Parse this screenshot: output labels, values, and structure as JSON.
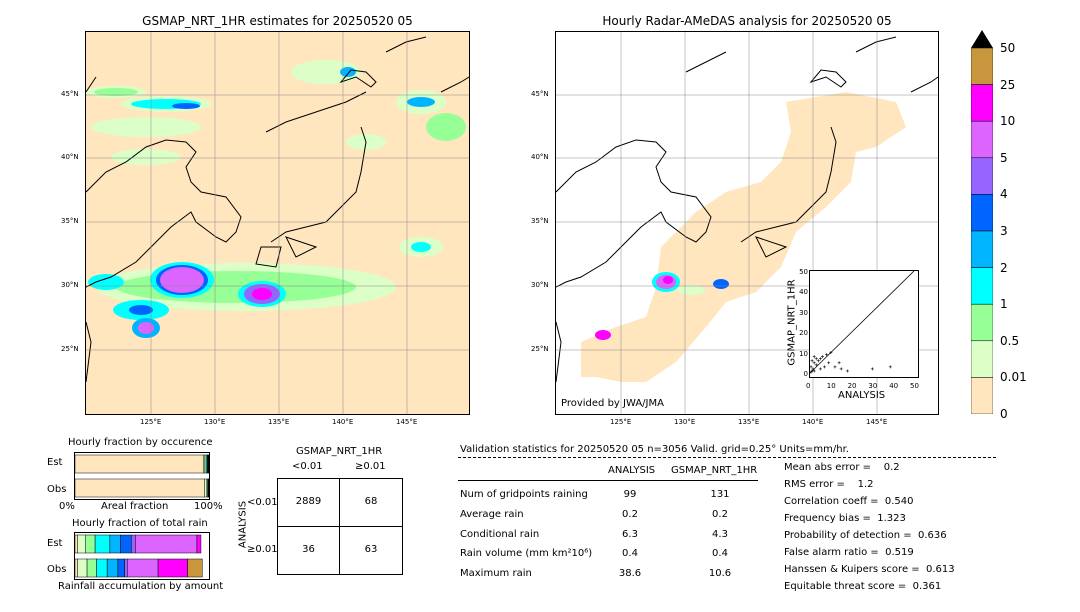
{
  "left_map": {
    "title": "GSMAP_NRT_1HR estimates for 20250520 05",
    "lat_labels": [
      "45°N",
      "40°N",
      "35°N",
      "30°N",
      "25°N"
    ],
    "lon_labels": [
      "125°E",
      "130°E",
      "135°E",
      "140°E",
      "145°E"
    ]
  },
  "right_map": {
    "title": "Hourly Radar-AMeDAS analysis for 20250520 05",
    "lat_labels": [
      "45°N",
      "40°N",
      "35°N",
      "30°N",
      "25°N"
    ],
    "lon_labels": [
      "125°E",
      "130°E",
      "135°E",
      "140°E",
      "145°E"
    ],
    "credit": "Provided by JWA/JMA"
  },
  "colorbar": {
    "labels": [
      "50",
      "25",
      "10",
      "5",
      "4",
      "3",
      "2",
      "1",
      "0.5",
      "0.01",
      "0"
    ],
    "colors": [
      "#c8963c",
      "#ff00ff",
      "#dc64ff",
      "#9664ff",
      "#0064ff",
      "#00b4ff",
      "#00ffff",
      "#96ff96",
      "#dcffc8",
      "#ffe6be"
    ]
  },
  "chart_data": [
    {
      "type": "scatter",
      "title": "",
      "xlabel": "ANALYSIS",
      "ylabel": "GSMAP_NRT_1HR",
      "xlim": [
        0,
        50
      ],
      "ylim": [
        0,
        50
      ],
      "ticks": [
        "0",
        "10",
        "20",
        "30",
        "40",
        "50"
      ],
      "diagonal": true,
      "points": [
        [
          0.5,
          0.5
        ],
        [
          1,
          1
        ],
        [
          1.5,
          2
        ],
        [
          2,
          1
        ],
        [
          3,
          4
        ],
        [
          4,
          6
        ],
        [
          5,
          2
        ],
        [
          6,
          8
        ],
        [
          7,
          3
        ],
        [
          8,
          9
        ],
        [
          9,
          5
        ],
        [
          10,
          10
        ],
        [
          12,
          3
        ],
        [
          14,
          5
        ],
        [
          15,
          2
        ],
        [
          18,
          1
        ],
        [
          1,
          6
        ],
        [
          2,
          8
        ],
        [
          3,
          7
        ],
        [
          30,
          2
        ],
        [
          38.6,
          3
        ],
        [
          0.5,
          3
        ],
        [
          2,
          5
        ],
        [
          5,
          7
        ]
      ]
    },
    {
      "type": "bar",
      "title": "Hourly fraction by occurence",
      "categories": [
        "Est",
        "Obs"
      ],
      "xlabel": "Areal fraction",
      "x_ticks": [
        "0%",
        "100%"
      ],
      "segments": [
        {
          "category": "Est",
          "fractions": [
            0.957,
            0.012,
            0.01,
            0.008,
            0.005,
            0.004,
            0.002,
            0.002
          ]
        },
        {
          "category": "Obs",
          "fractions": [
            0.968,
            0.016,
            0.006,
            0.004,
            0.003,
            0.002,
            0.001
          ]
        }
      ]
    },
    {
      "type": "bar",
      "title": "Hourly fraction of total rain",
      "categories": [
        "Est",
        "Obs"
      ],
      "xlabel": "Rainfall accumulation by amount",
      "segments": [
        {
          "category": "Est",
          "fractions": [
            0.02,
            0.06,
            0.07,
            0.11,
            0.08,
            0.08,
            0.03,
            0.46,
            0.03
          ]
        },
        {
          "category": "Obs",
          "fractions": [
            0.02,
            0.07,
            0.07,
            0.08,
            0.08,
            0.05,
            0.02,
            0.23,
            0.22,
            0.11
          ]
        }
      ]
    }
  ],
  "contingency": {
    "header": "GSMAP_NRT_1HR",
    "col_labels": [
      "<0.01",
      "≥0.01"
    ],
    "row_axis": "ANALYSIS",
    "row_labels": [
      "<0.01",
      "≥0.01"
    ],
    "cells": [
      [
        "2889",
        "68"
      ],
      [
        "36",
        "63"
      ]
    ]
  },
  "validation": {
    "header": "Validation statistics for 20250520 05  n=3056 Valid. grid=0.25° Units=mm/hr.",
    "col_analysis": "ANALYSIS",
    "col_gsmap": "GSMAP_NRT_1HR",
    "rows": [
      {
        "label": "Num of gridpoints raining",
        "analysis": "99",
        "gsmap": "131"
      },
      {
        "label": "Average rain",
        "analysis": "0.2",
        "gsmap": "0.2"
      },
      {
        "label": "Conditional rain",
        "analysis": "6.3",
        "gsmap": "4.3"
      },
      {
        "label": "Rain volume (mm km²10⁶)",
        "analysis": "0.4",
        "gsmap": "0.4"
      },
      {
        "label": "Maximum rain",
        "analysis": "38.6",
        "gsmap": "10.6"
      }
    ],
    "scores": [
      "Mean abs error =    0.2",
      "RMS error =    1.2",
      "Correlation coeff =  0.540",
      "Frequency bias =  1.323",
      "Probability of detection =  0.636",
      "False alarm ratio =  0.519",
      "Hanssen & Kuipers score =  0.613",
      "Equitable threat score =  0.361"
    ]
  }
}
